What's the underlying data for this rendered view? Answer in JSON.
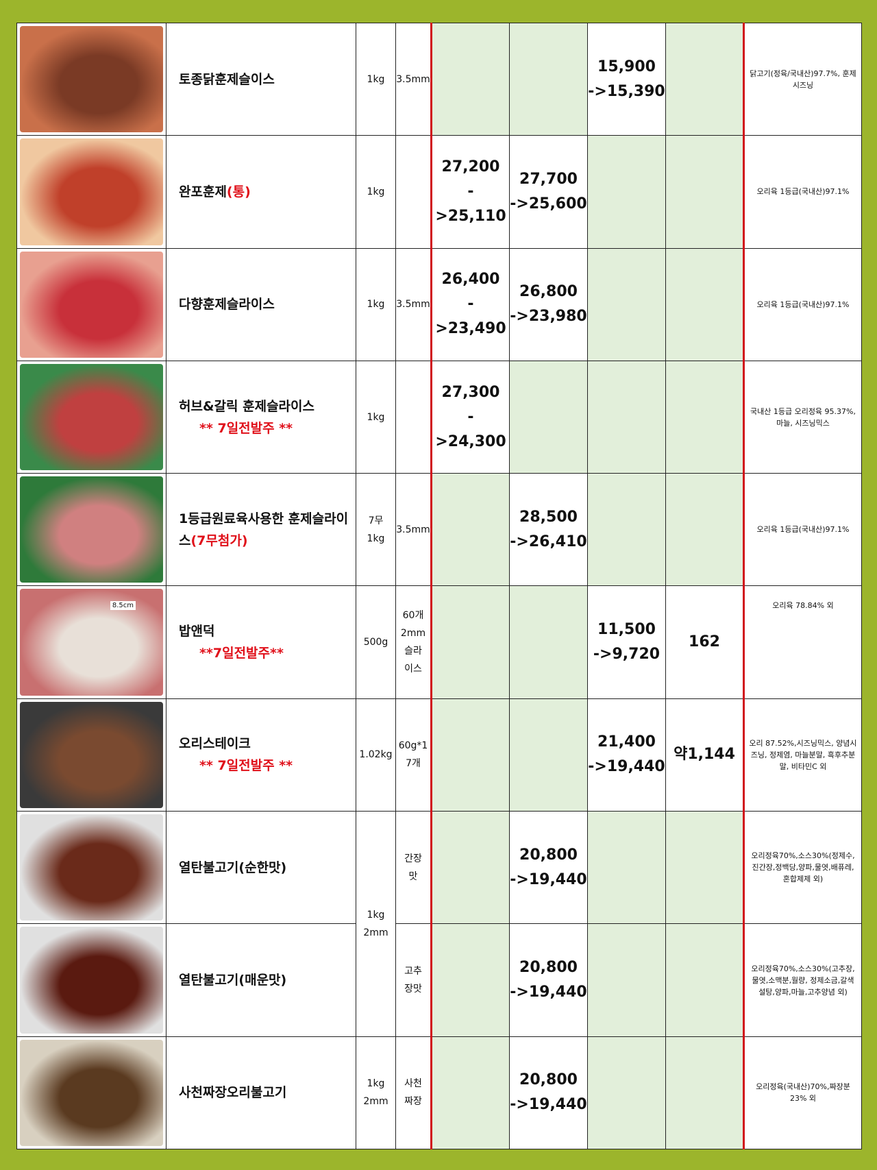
{
  "rows": [
    {
      "name": "토종닭훈제슬이스",
      "weight": "1kg",
      "spec": "3.5mm",
      "p1": "",
      "p2": "",
      "p3": "15,900\n->15,390",
      "p4": "",
      "ing": "닭고기(정육/국내산)97.7%, 훈제시즈닝",
      "img": "smoked-chicken-slices-photo"
    },
    {
      "name": "완포훈제",
      "name_red": "(통)",
      "weight": "1kg",
      "spec": "",
      "p1": "27,200\n->25,110",
      "p2": "27,700\n->25,600",
      "p3": "",
      "p4": "",
      "ing": "오리육 1등급(국내산)97.1%",
      "img": "whole-smoked-duck-package-photo"
    },
    {
      "name": "다향훈제슬라이스",
      "weight": "1kg",
      "spec": "3.5mm",
      "p1": "26,400\n->23,490",
      "p2": "26,800\n->23,980",
      "p3": "",
      "p4": "",
      "ing": "오리육 1등급(국내산)97.1%",
      "img": "smoked-duck-slices-package-photo"
    },
    {
      "name": "허브&갈릭 훈제슬라이스",
      "name_red": "** 7일전발주 **",
      "weight": "1kg",
      "spec": "",
      "p1": "27,300\n->24,300",
      "p2": "",
      "p3": "",
      "p4": "",
      "ing": "국내산 1등급 오리정육 95.37%, 마늘, 시즈닝믹스",
      "img": "herb-garlic-duck-package-photo"
    },
    {
      "name": "1등급원료육사용한 훈제슬라이스",
      "name_red": "(7무첨가)",
      "weight": "7무\n1kg",
      "spec": "3.5mm",
      "p1": "",
      "p2": "28,500\n->26,410",
      "p3": "",
      "p4": "",
      "ing": "오리육 1등급(국내산)97.1%",
      "img": "smoked-slices-green-package-photo"
    },
    {
      "name": "밥앤덕",
      "name_red": "**7일전발주**",
      "weight": "500g",
      "spec": "60개\n2mm\n슬라\n이스",
      "p1": "",
      "p2": "",
      "p3": "11,500\n->9,720",
      "p4": "162",
      "ing": "오리육 78.84% 외",
      "img": "bob-and-duck-slices-photo",
      "img_label": "8.5cm"
    },
    {
      "name": "오리스테이크",
      "name_red": "** 7일전발주 **",
      "weight": "1.02kg",
      "spec": "60g*1\n7개",
      "p1": "",
      "p2": "",
      "p3": "21,400\n->19,440",
      "p4": "약1,144",
      "ing": "오리 87.52%,시즈닝믹스, 양념시즈닝, 정제염, 마늘분말, 흑후추분말, 비타민C 외",
      "img": "duck-steak-photo"
    },
    {
      "name": "열탄불고기(순한맛)",
      "weight": "1kg\n2mm",
      "spec": "간장\n맛",
      "p1": "",
      "p2": "20,800\n->19,440",
      "p3": "",
      "p4": "",
      "ing": "오리정육70%,소스30%(정제수,진간장,정백당,양파,물엿,배퓨레,혼합제제 외)",
      "img": "bulgogi-mild-package-photo"
    },
    {
      "name": "열탄불고기(매운맛)",
      "weight": "",
      "spec": "고추\n장맛",
      "p1": "",
      "p2": "20,800\n->19,440",
      "p3": "",
      "p4": "",
      "ing": "오리정육70%,소스30%(고추장,물엿,소맥분,월량, 정제소금,갈색설탕,양파,마늘,고추양념 외)",
      "img": "bulgogi-spicy-package-photo"
    },
    {
      "name": "사천짜장오리불고기",
      "weight": "1kg\n2mm",
      "spec": "사천\n짜장",
      "p1": "",
      "p2": "20,800\n->19,440",
      "p3": "",
      "p4": "",
      "ing": "오리정육(국내산)70%,짜장분23% 외",
      "img": "jjajang-duck-bulgogi-photo"
    }
  ],
  "colors": {
    "frame": "#9cb52c",
    "cell_green": "#e2efda",
    "red": "#e0101a"
  }
}
